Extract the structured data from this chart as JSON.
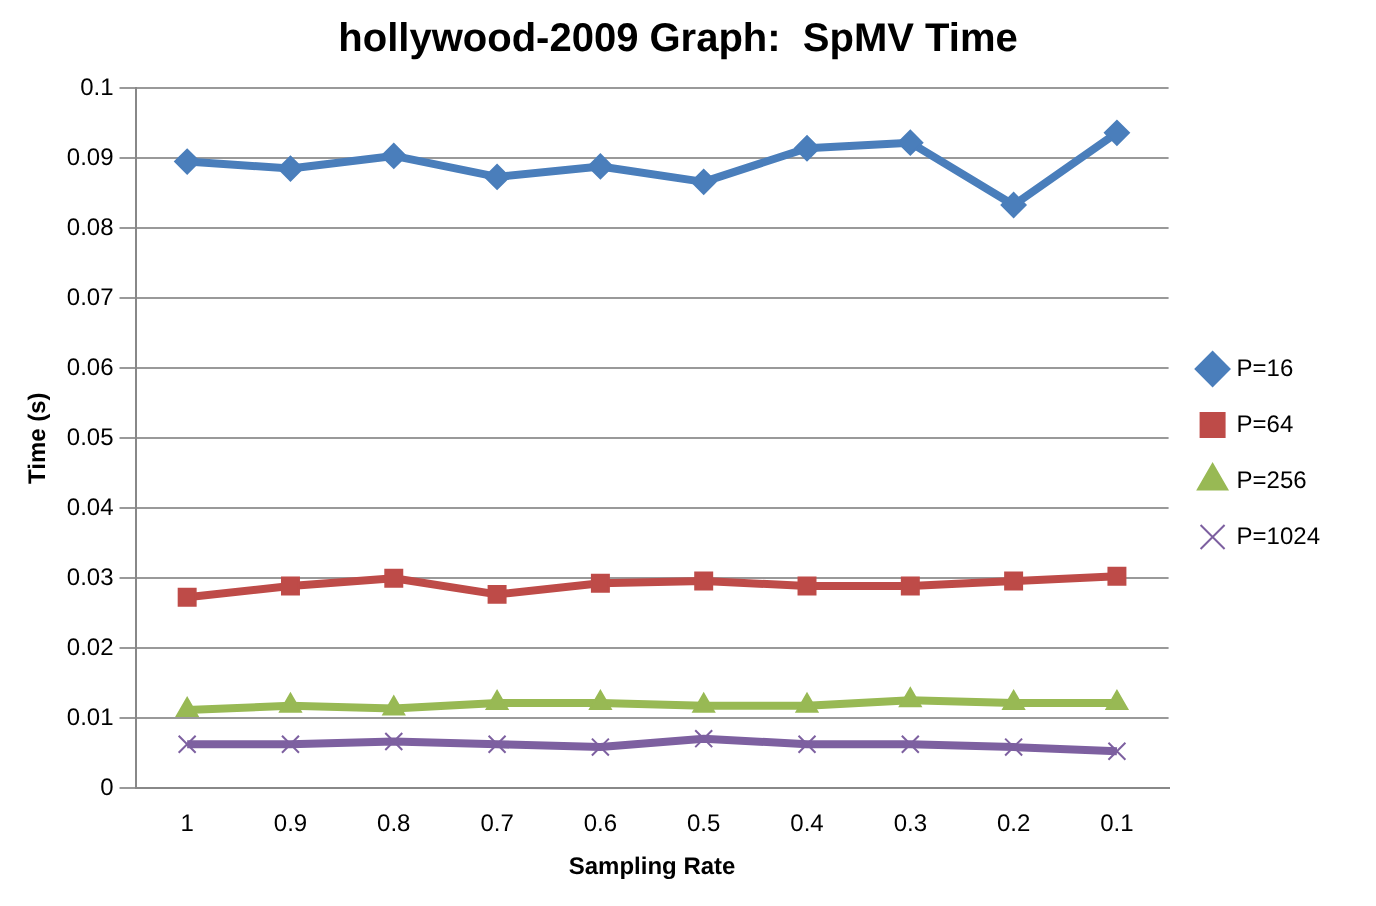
{
  "chart_data": {
    "type": "line",
    "title": "hollywood-2009 Graph:  SpMV Time",
    "xlabel": "Sampling Rate",
    "ylabel": "Time (s)",
    "categories": [
      "1",
      "0.9",
      "0.8",
      "0.7",
      "0.6",
      "0.5",
      "0.4",
      "0.3",
      "0.2",
      "0.1"
    ],
    "series": [
      {
        "name": "P=16",
        "color": "#4a7ebb",
        "marker": "diamond",
        "values": [
          0.0895,
          0.0885,
          0.0903,
          0.0873,
          0.0888,
          0.0866,
          0.0914,
          0.0922,
          0.0833,
          0.0936
        ]
      },
      {
        "name": "P=64",
        "color": "#be4b48",
        "marker": "square",
        "values": [
          0.0273,
          0.0289,
          0.03,
          0.0277,
          0.0293,
          0.0296,
          0.0289,
          0.0289,
          0.0296,
          0.0303
        ]
      },
      {
        "name": "P=256",
        "color": "#98b954",
        "marker": "triangle",
        "values": [
          0.0112,
          0.0118,
          0.0114,
          0.0122,
          0.0122,
          0.0118,
          0.0118,
          0.0126,
          0.0122,
          0.0122
        ]
      },
      {
        "name": "P=1024",
        "color": "#7d60a0",
        "marker": "cross",
        "values": [
          0.0063,
          0.0063,
          0.0067,
          0.0063,
          0.0059,
          0.0071,
          0.0063,
          0.0063,
          0.0059,
          0.0053
        ]
      }
    ],
    "ylim": [
      0,
      0.1
    ],
    "yticks": [
      0,
      0.01,
      0.02,
      0.03,
      0.04,
      0.05,
      0.06,
      0.07,
      0.08,
      0.09,
      0.1
    ],
    "grid": "y",
    "legend": "right",
    "line_style": "solid"
  }
}
